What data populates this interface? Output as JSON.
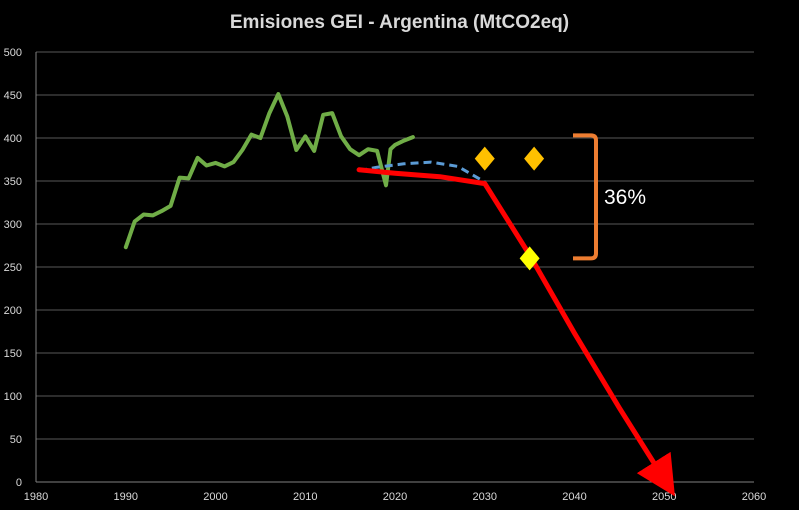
{
  "chart_data": {
    "type": "line",
    "title": "Emisiones GEI - Argentina (MtCO2eq)",
    "xlabel": "",
    "ylabel": "",
    "xlim": [
      1980,
      2060
    ],
    "ylim": [
      0,
      500
    ],
    "x_ticks": [
      1980,
      1990,
      2000,
      2010,
      2020,
      2030,
      2040,
      2050,
      2060
    ],
    "y_ticks": [
      0,
      50,
      100,
      150,
      200,
      250,
      300,
      350,
      400,
      450,
      500
    ],
    "grid": "horizontal",
    "legend": "none",
    "series": [
      {
        "style": "solid",
        "color": "#70ad47",
        "points": [
          [
            1990,
            273
          ],
          [
            1991,
            303
          ],
          [
            1992,
            311
          ],
          [
            1993,
            310
          ],
          [
            1994,
            315
          ],
          [
            1995,
            321
          ],
          [
            1996,
            354
          ],
          [
            1997,
            353
          ],
          [
            1998,
            377
          ],
          [
            1999,
            368
          ],
          [
            2000,
            371
          ],
          [
            2001,
            367
          ],
          [
            2002,
            372
          ],
          [
            2003,
            386
          ],
          [
            2004,
            404
          ],
          [
            2005,
            400
          ],
          [
            2006,
            429
          ],
          [
            2007,
            451
          ],
          [
            2008,
            425
          ],
          [
            2009,
            386
          ],
          [
            2010,
            402
          ],
          [
            2011,
            385
          ],
          [
            2012,
            427
          ],
          [
            2013,
            429
          ],
          [
            2014,
            402
          ],
          [
            2015,
            387
          ],
          [
            2016,
            380
          ],
          [
            2017,
            387
          ],
          [
            2018,
            385
          ],
          [
            2019,
            345
          ],
          [
            2019.5,
            387
          ],
          [
            2020,
            392
          ],
          [
            2021,
            397
          ],
          [
            2022,
            401
          ]
        ]
      },
      {
        "style": "dashed",
        "color": "#5b9bd5",
        "points": [
          [
            2016,
            362
          ],
          [
            2018,
            366
          ],
          [
            2021,
            370
          ],
          [
            2024,
            372
          ],
          [
            2027,
            367
          ],
          [
            2030,
            349
          ]
        ]
      },
      {
        "style": "solid-arrow",
        "color": "#ff0000",
        "points": [
          [
            2016,
            363
          ],
          [
            2020,
            359
          ],
          [
            2025,
            355
          ],
          [
            2030,
            347
          ],
          [
            2035,
            264
          ],
          [
            2040,
            173
          ],
          [
            2045,
            86
          ],
          [
            2050,
            3
          ]
        ]
      }
    ],
    "markers": [
      {
        "x": 2030,
        "y": 376,
        "shape": "diamond",
        "color": "#ffc000"
      },
      {
        "x": 2035.5,
        "y": 376,
        "shape": "diamond",
        "color": "#ffc000"
      },
      {
        "x": 2035,
        "y": 260,
        "shape": "diamond",
        "color": "#ffff00"
      }
    ],
    "annotations": [
      {
        "text": "36%",
        "type": "bracket",
        "y_from": 403,
        "y_to": 260,
        "color": "#ed7d31"
      }
    ]
  }
}
